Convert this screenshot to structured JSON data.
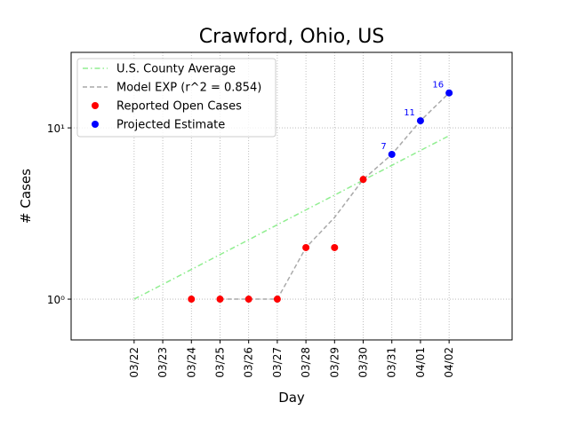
{
  "chart_data": {
    "type": "line",
    "title": "Crawford, Ohio, US",
    "xlabel": "Day",
    "ylabel": "# Cases",
    "categories": [
      "03/22",
      "03/23",
      "03/24",
      "03/25",
      "03/26",
      "03/27",
      "03/28",
      "03/29",
      "03/30",
      "03/31",
      "04/01",
      "04/02"
    ],
    "xlim": [
      -2.2,
      13.2
    ],
    "ylim": [
      0.578,
      27.6
    ],
    "yscale": "log",
    "yticks": [
      {
        "value": 1,
        "label": "10⁰"
      },
      {
        "value": 10,
        "label": "10¹"
      }
    ],
    "grid": true,
    "legend": "upper left",
    "series": [
      {
        "name": "U.S. County Average",
        "color": "#90ee90",
        "linestyle": "dashdot",
        "values": [
          1,
          1.22,
          1.49,
          1.82,
          2.22,
          2.72,
          3.32,
          4.05,
          4.95,
          6.04,
          7.38,
          9
        ]
      },
      {
        "name": "Model EXP (r^2 = 0.854)",
        "color": "#a9a9a9",
        "linestyle": "dashed",
        "values": [
          null,
          null,
          null,
          1,
          1,
          1,
          2,
          3,
          5,
          7,
          11,
          16
        ]
      },
      {
        "name": "Reported Open Cases",
        "color": "#ff0000",
        "linestyle": "marker",
        "values": [
          null,
          null,
          1,
          1,
          1,
          1,
          2,
          2,
          5,
          null,
          null,
          null
        ]
      },
      {
        "name": "Projected Estimate",
        "color": "#0000ff",
        "linestyle": "marker",
        "labels": true,
        "values": [
          null,
          null,
          null,
          null,
          null,
          null,
          null,
          null,
          null,
          7,
          11,
          16
        ]
      }
    ]
  }
}
